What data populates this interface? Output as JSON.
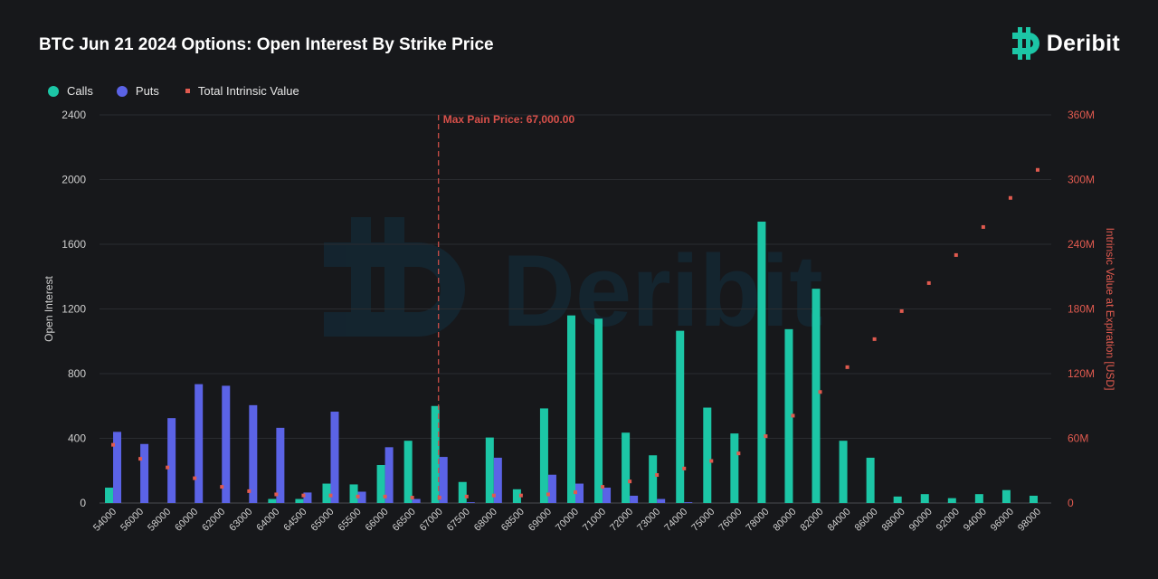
{
  "title": "BTC Jun 21 2024 Options: Open Interest By Strike Price",
  "brand": {
    "name": "Deribit",
    "logo_icon": "bitcoin-logo-icon"
  },
  "colors": {
    "calls": "#1cc6a6",
    "puts": "#5b63e6",
    "intrinsic": "#e05a4f",
    "maxpain": "#d8504a"
  },
  "legend": {
    "calls": "Calls",
    "puts": "Puts",
    "intrinsic": "Total Intrinsic Value"
  },
  "max_pain_label": "Max Pain Price: 67,000.00",
  "watermark": "Deribit",
  "chart_data": {
    "type": "bar",
    "categories": [
      "54000",
      "56000",
      "58000",
      "60000",
      "62000",
      "63000",
      "64000",
      "64500",
      "65000",
      "65500",
      "66000",
      "66500",
      "67000",
      "67500",
      "68000",
      "68500",
      "69000",
      "70000",
      "71000",
      "72000",
      "73000",
      "74000",
      "75000",
      "76000",
      "78000",
      "80000",
      "82000",
      "84000",
      "86000",
      "88000",
      "90000",
      "92000",
      "94000",
      "96000",
      "98000"
    ],
    "series": [
      {
        "name": "Calls",
        "axis": "left",
        "values": [
          95,
          0,
          0,
          0,
          0,
          0,
          25,
          25,
          120,
          115,
          235,
          385,
          600,
          130,
          405,
          85,
          585,
          1160,
          1140,
          435,
          295,
          1065,
          590,
          430,
          1740,
          1075,
          1325,
          385,
          280,
          40,
          55,
          30,
          55,
          80,
          45
        ]
      },
      {
        "name": "Puts",
        "axis": "left",
        "values": [
          440,
          365,
          525,
          735,
          725,
          605,
          465,
          65,
          565,
          70,
          345,
          25,
          285,
          5,
          280,
          0,
          175,
          120,
          95,
          45,
          25,
          5,
          0,
          0,
          0,
          0,
          0,
          0,
          0,
          0,
          0,
          0,
          0,
          0,
          0
        ]
      },
      {
        "name": "Total Intrinsic Value",
        "axis": "right",
        "type": "scatter",
        "values": [
          54000000,
          41000000,
          33000000,
          23000000,
          15000000,
          11000000,
          8000000,
          7000000,
          7000000,
          6000000,
          6000000,
          5000000,
          5000000,
          6000000,
          7000000,
          7000000,
          8000000,
          10000000,
          15000000,
          20000000,
          26000000,
          32000000,
          39000000,
          46000000,
          62000000,
          81000000,
          103000000,
          126000000,
          152000000,
          178000000,
          204000000,
          230000000,
          256000000,
          283000000,
          309000000
        ]
      }
    ],
    "ylabel": "Open Interest",
    "y2label": "Intrinsic Value at Expiration [USD]",
    "ylim": [
      0,
      2400
    ],
    "y2lim": [
      0,
      360000000
    ],
    "yticks": [
      "0",
      "400",
      "800",
      "1200",
      "1600",
      "2000",
      "2400"
    ],
    "y2ticks": [
      "0",
      "60M",
      "120M",
      "180M",
      "240M",
      "300M",
      "360M"
    ],
    "max_pain": "67000",
    "grid": true,
    "legend_position": "top-left"
  }
}
